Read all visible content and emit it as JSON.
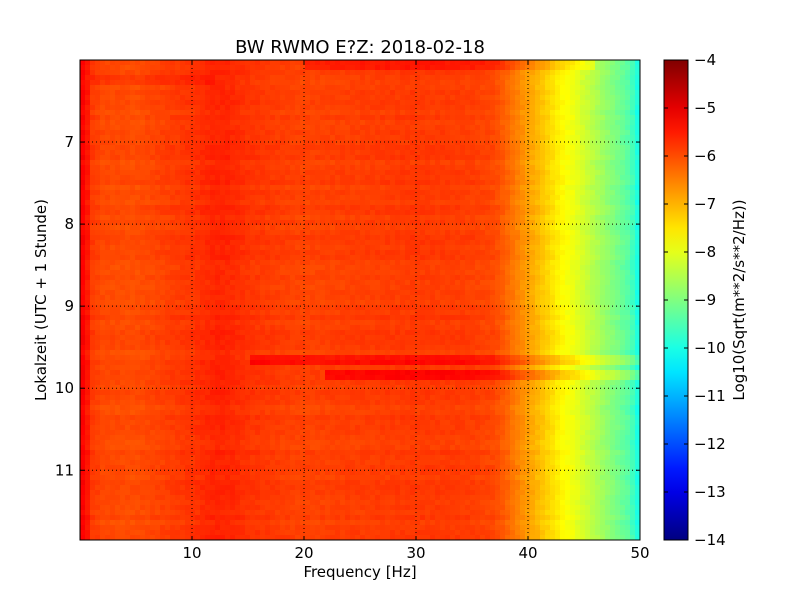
{
  "chart_data": {
    "type": "heatmap",
    "title": "BW RWMO E?Z: 2018-02-18",
    "xlabel": "Frequency [Hz]",
    "ylabel": "Lokalzeit (UTC + 1 Stunde)",
    "xlim": [
      0,
      50
    ],
    "ylim": [
      11.85,
      6.0
    ],
    "x_ticks": [
      10,
      20,
      30,
      40,
      50
    ],
    "y_ticks": [
      7,
      8,
      9,
      10,
      11
    ],
    "grid": true,
    "grid_style": "dotted",
    "colormap": "jet",
    "colorbar": {
      "label": "Log10(Sqrt(m**2/s**2/Hz))",
      "range": [
        -14,
        -4
      ],
      "ticks": [
        -4,
        -5,
        -6,
        -7,
        -8,
        -9,
        -10,
        -11,
        -12,
        -13,
        -14
      ]
    },
    "frequency_profile": {
      "frequency_hz": [
        0,
        0.5,
        1,
        2,
        5,
        10,
        12,
        13,
        15,
        18,
        20,
        25,
        30,
        35,
        37,
        38,
        39,
        40,
        41,
        42,
        43,
        44,
        45,
        46,
        47,
        48,
        49,
        49.5,
        50
      ],
      "log10_amplitude": [
        -5.2,
        -5.3,
        -5.8,
        -5.95,
        -6.0,
        -5.75,
        -5.6,
        -5.6,
        -5.75,
        -5.85,
        -5.9,
        -5.85,
        -5.8,
        -5.85,
        -5.95,
        -6.2,
        -6.5,
        -6.8,
        -7.1,
        -7.4,
        -7.7,
        -7.9,
        -8.2,
        -8.5,
        -8.8,
        -9.1,
        -9.4,
        -9.7,
        -10.2
      ]
    },
    "time_events": [
      {
        "time": 6.05,
        "log10_amplitude_delta": 0.35,
        "f_min": 20,
        "f_max": 46
      },
      {
        "time": 6.25,
        "log10_amplitude_delta": 0.2,
        "f_min": 1,
        "f_max": 12
      },
      {
        "time": 9.67,
        "log10_amplitude_delta": 0.45,
        "f_min": 15,
        "f_max": 50
      },
      {
        "time": 9.83,
        "log10_amplitude_delta": 0.5,
        "f_min": 22,
        "f_max": 50
      }
    ]
  }
}
